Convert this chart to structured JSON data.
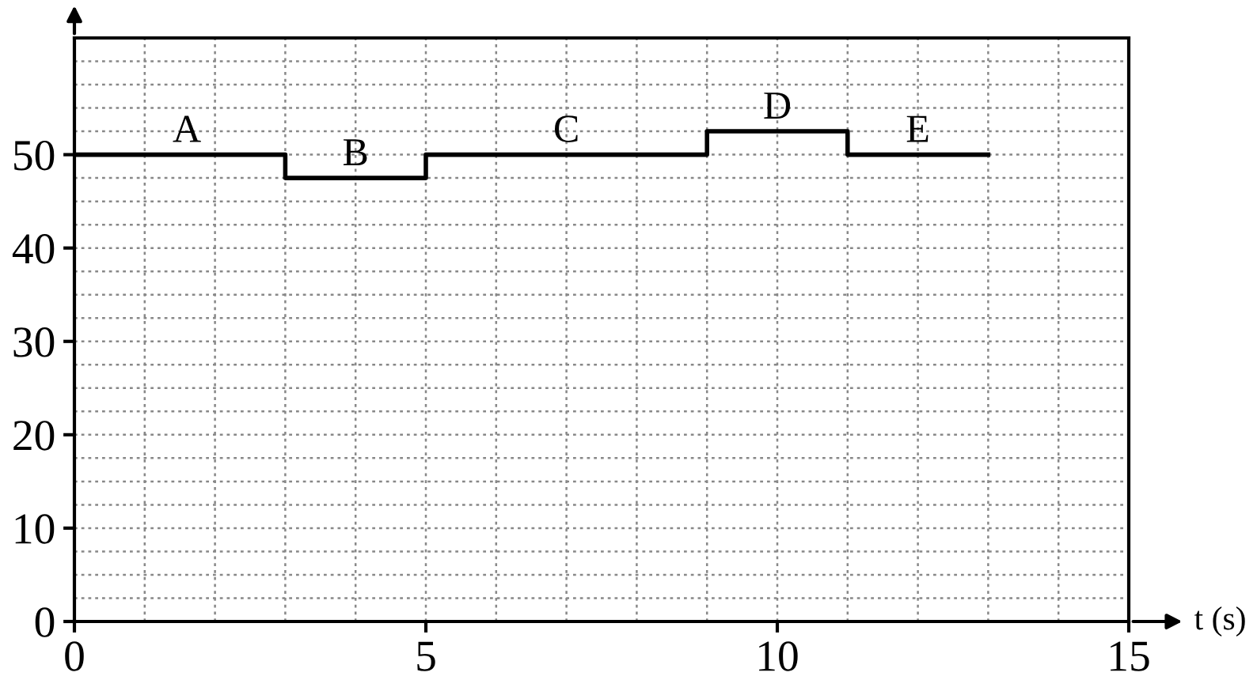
{
  "chart_data": {
    "type": "step",
    "x": [
      0,
      3,
      5,
      9,
      11,
      13
    ],
    "values": [
      50,
      47.5,
      50,
      52.5,
      50,
      50
    ],
    "color": "#000000",
    "xlabel": "t (s)",
    "xlim": [
      0,
      15
    ],
    "ylim": [
      0,
      62.5
    ],
    "xticks": [
      0,
      {
        "value": 1,
        "label": null
      },
      {
        "value": 2,
        "label": null
      },
      {
        "value": 3,
        "label": null
      },
      {
        "value": 4,
        "label": null
      },
      5,
      {
        "value": 6,
        "label": null
      },
      {
        "value": 7,
        "label": null
      },
      {
        "value": 8,
        "label": null
      },
      {
        "value": 9,
        "label": null
      },
      10,
      {
        "value": 11,
        "label": null
      },
      {
        "value": 12,
        "label": null
      },
      {
        "value": 13,
        "label": null
      },
      {
        "value": 14,
        "label": null
      },
      15
    ],
    "yticks": [
      0,
      {
        "value": 2.5,
        "label": null
      },
      {
        "value": 5,
        "label": null
      },
      {
        "value": 7.5,
        "label": null
      },
      10,
      {
        "value": 12.5,
        "label": null
      },
      {
        "value": 15,
        "label": null
      },
      {
        "value": 17.5,
        "label": null
      },
      20,
      {
        "value": 22.5,
        "label": null
      },
      {
        "value": 25,
        "label": null
      },
      {
        "value": 27.5,
        "label": null
      },
      30,
      {
        "value": 32.5,
        "label": null
      },
      {
        "value": 35,
        "label": null
      },
      {
        "value": 37.5,
        "label": null
      },
      40,
      {
        "value": 42.5,
        "label": null
      },
      {
        "value": 45,
        "label": null
      },
      {
        "value": 47.5,
        "label": null
      },
      50,
      {
        "value": 52.5,
        "label": null
      },
      {
        "value": 55,
        "label": null
      },
      {
        "value": 57.5,
        "label": null
      },
      {
        "value": 60,
        "label": null
      }
    ],
    "grid": true,
    "annotations": [
      {
        "text": "A",
        "x": 1.6,
        "y": 50
      },
      {
        "text": "B",
        "x": 4,
        "y": 47.5
      },
      {
        "text": "C",
        "x": 7,
        "y": 50
      },
      {
        "text": "D",
        "x": 10,
        "y": 52.5
      },
      {
        "text": "E",
        "x": 12,
        "y": 50
      }
    ]
  }
}
